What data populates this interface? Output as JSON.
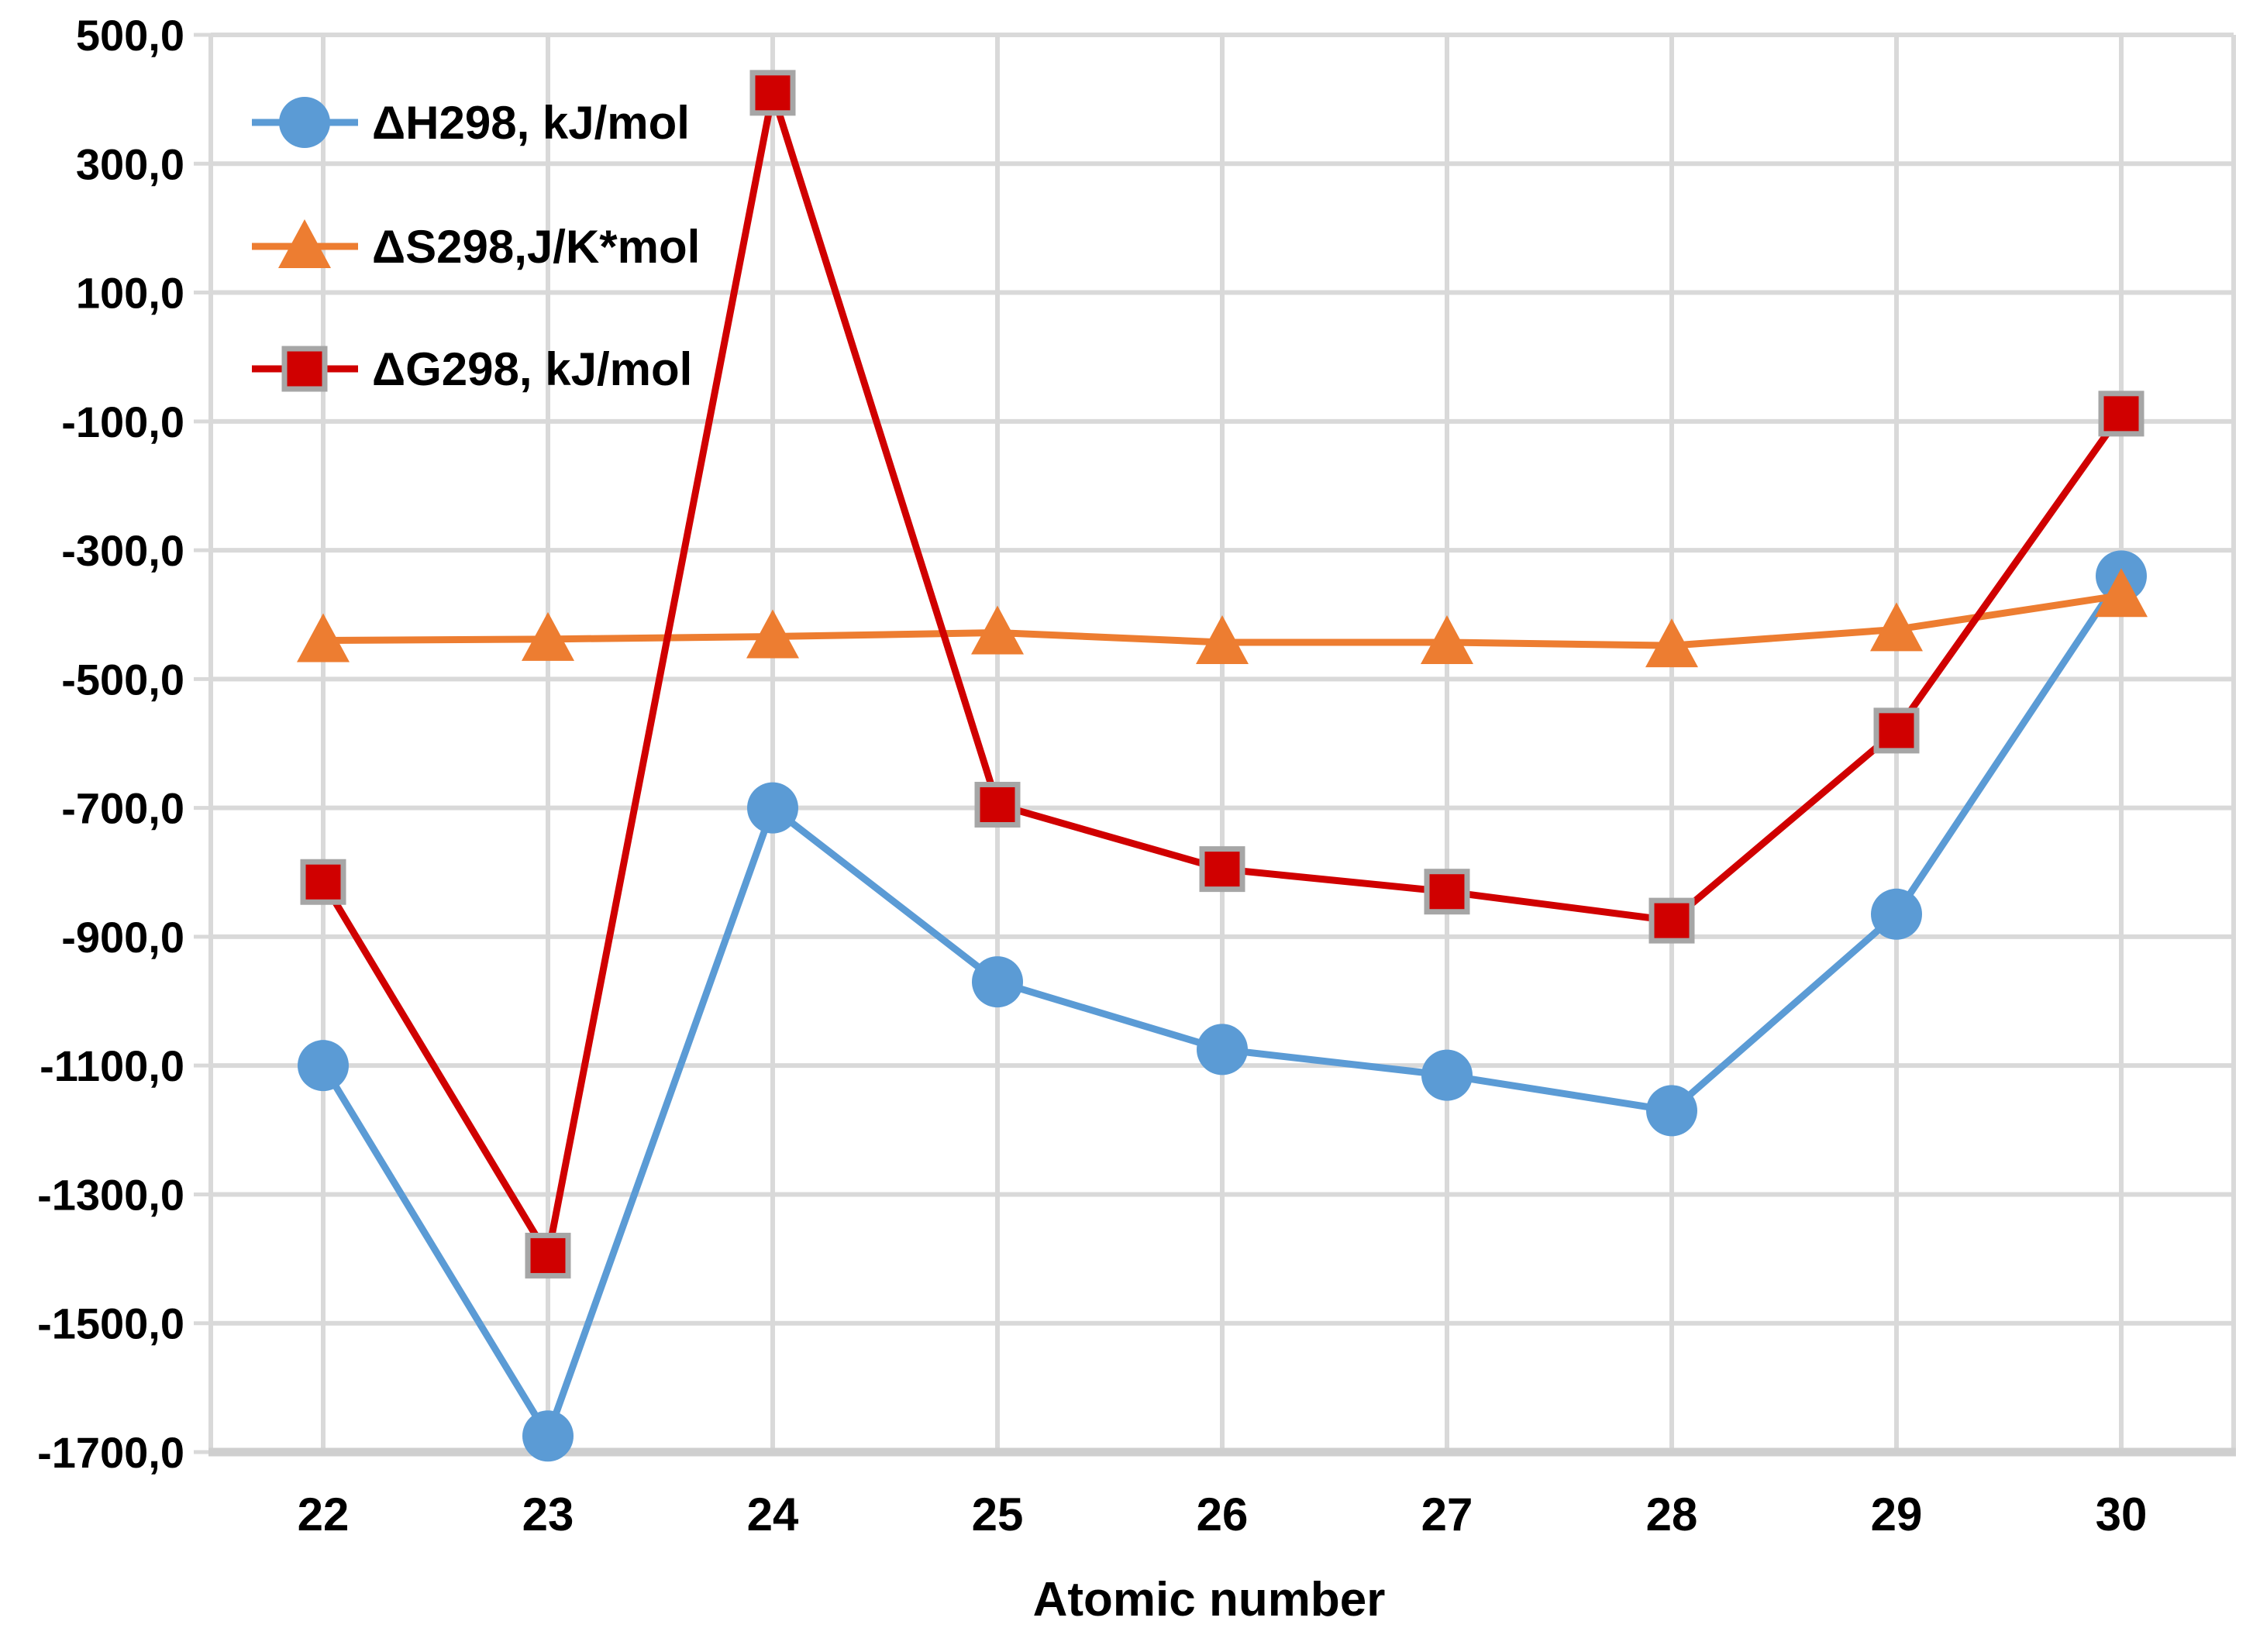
{
  "chart_data": {
    "type": "line",
    "title": "",
    "xlabel": "Atomic number",
    "ylabel": "",
    "x": [
      22,
      23,
      24,
      25,
      26,
      27,
      28,
      29,
      30
    ],
    "x_tick_labels": [
      "22",
      "23",
      "24",
      "25",
      "26",
      "27",
      "28",
      "29",
      "30"
    ],
    "ylim": [
      -1700,
      500
    ],
    "ytick_step": 200,
    "y_tick_labels": [
      "500,0",
      "300,0",
      "100,0",
      "-100,0",
      "-300,0",
      "-500,0",
      "-700,0",
      "-900,0",
      "-1100,0",
      "-1300,0",
      "-1500,0",
      "-1700,0"
    ],
    "grid": true,
    "legend_position": "inside-top-left",
    "series": [
      {
        "name": "ΔH298, kJ/mol",
        "marker": "circle",
        "color": "#5B9BD5",
        "values": [
          -1100,
          -1675,
          -700,
          -970,
          -1075,
          -1115,
          -1170,
          -865,
          -340
        ]
      },
      {
        "name": "ΔS298,J/K*mol",
        "marker": "triangle",
        "color": "#ED7D31",
        "values": [
          -440,
          -438,
          -434,
          -428,
          -443,
          -443,
          -448,
          -423,
          -370
        ]
      },
      {
        "name": "ΔG298, kJ/mol",
        "marker": "square",
        "color": "#D00000",
        "marker_border": "#A6A6A6",
        "values": [
          -815,
          -1395,
          410,
          -695,
          -795,
          -830,
          -875,
          -580,
          -88
        ]
      }
    ]
  },
  "style_colors": {
    "gridline": "#D9D9D9",
    "axis_line": "#CFCFCF",
    "text": "#000000"
  }
}
